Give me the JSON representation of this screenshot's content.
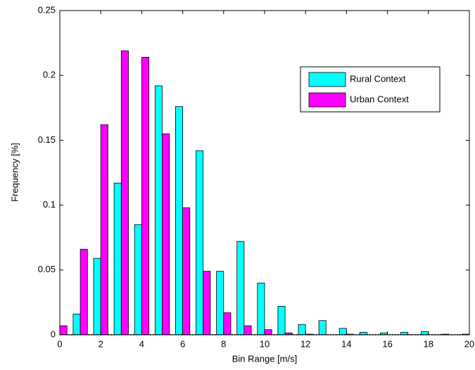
{
  "chart_data": {
    "type": "bar",
    "x_label": "Bin Range [m/s]",
    "y_label": "Frequency [%]",
    "x": [
      0,
      1,
      2,
      3,
      4,
      5,
      6,
      7,
      8,
      9,
      10,
      11,
      12,
      13,
      14,
      15,
      16,
      17,
      18,
      19,
      20
    ],
    "series": [
      {
        "name": "Rural Context",
        "color": "#00ffff",
        "values": [
          0,
          0.016,
          0.059,
          0.117,
          0.085,
          0.192,
          0.176,
          0.142,
          0.049,
          0.072,
          0.04,
          0.022,
          0.008,
          0.011,
          0.005,
          0.002,
          0.0015,
          0.002,
          0.0025,
          0.0005,
          0.0005
        ]
      },
      {
        "name": "Urban Context",
        "color": "#ff00ff",
        "values": [
          0.007,
          0.066,
          0.162,
          0.219,
          0.214,
          0.155,
          0.098,
          0.049,
          0.017,
          0.007,
          0.004,
          0.0015,
          0.0005,
          0,
          0.0005,
          0,
          0,
          0,
          0,
          0,
          0
        ]
      }
    ],
    "xlim": [
      0,
      20
    ],
    "xticks": [
      0,
      2,
      4,
      6,
      8,
      10,
      12,
      14,
      16,
      18,
      20
    ],
    "ylim": [
      0,
      0.25
    ],
    "yticks": [
      0,
      0.05,
      0.1,
      0.15,
      0.2,
      0.25
    ],
    "grid": false,
    "legend": "upper right"
  }
}
